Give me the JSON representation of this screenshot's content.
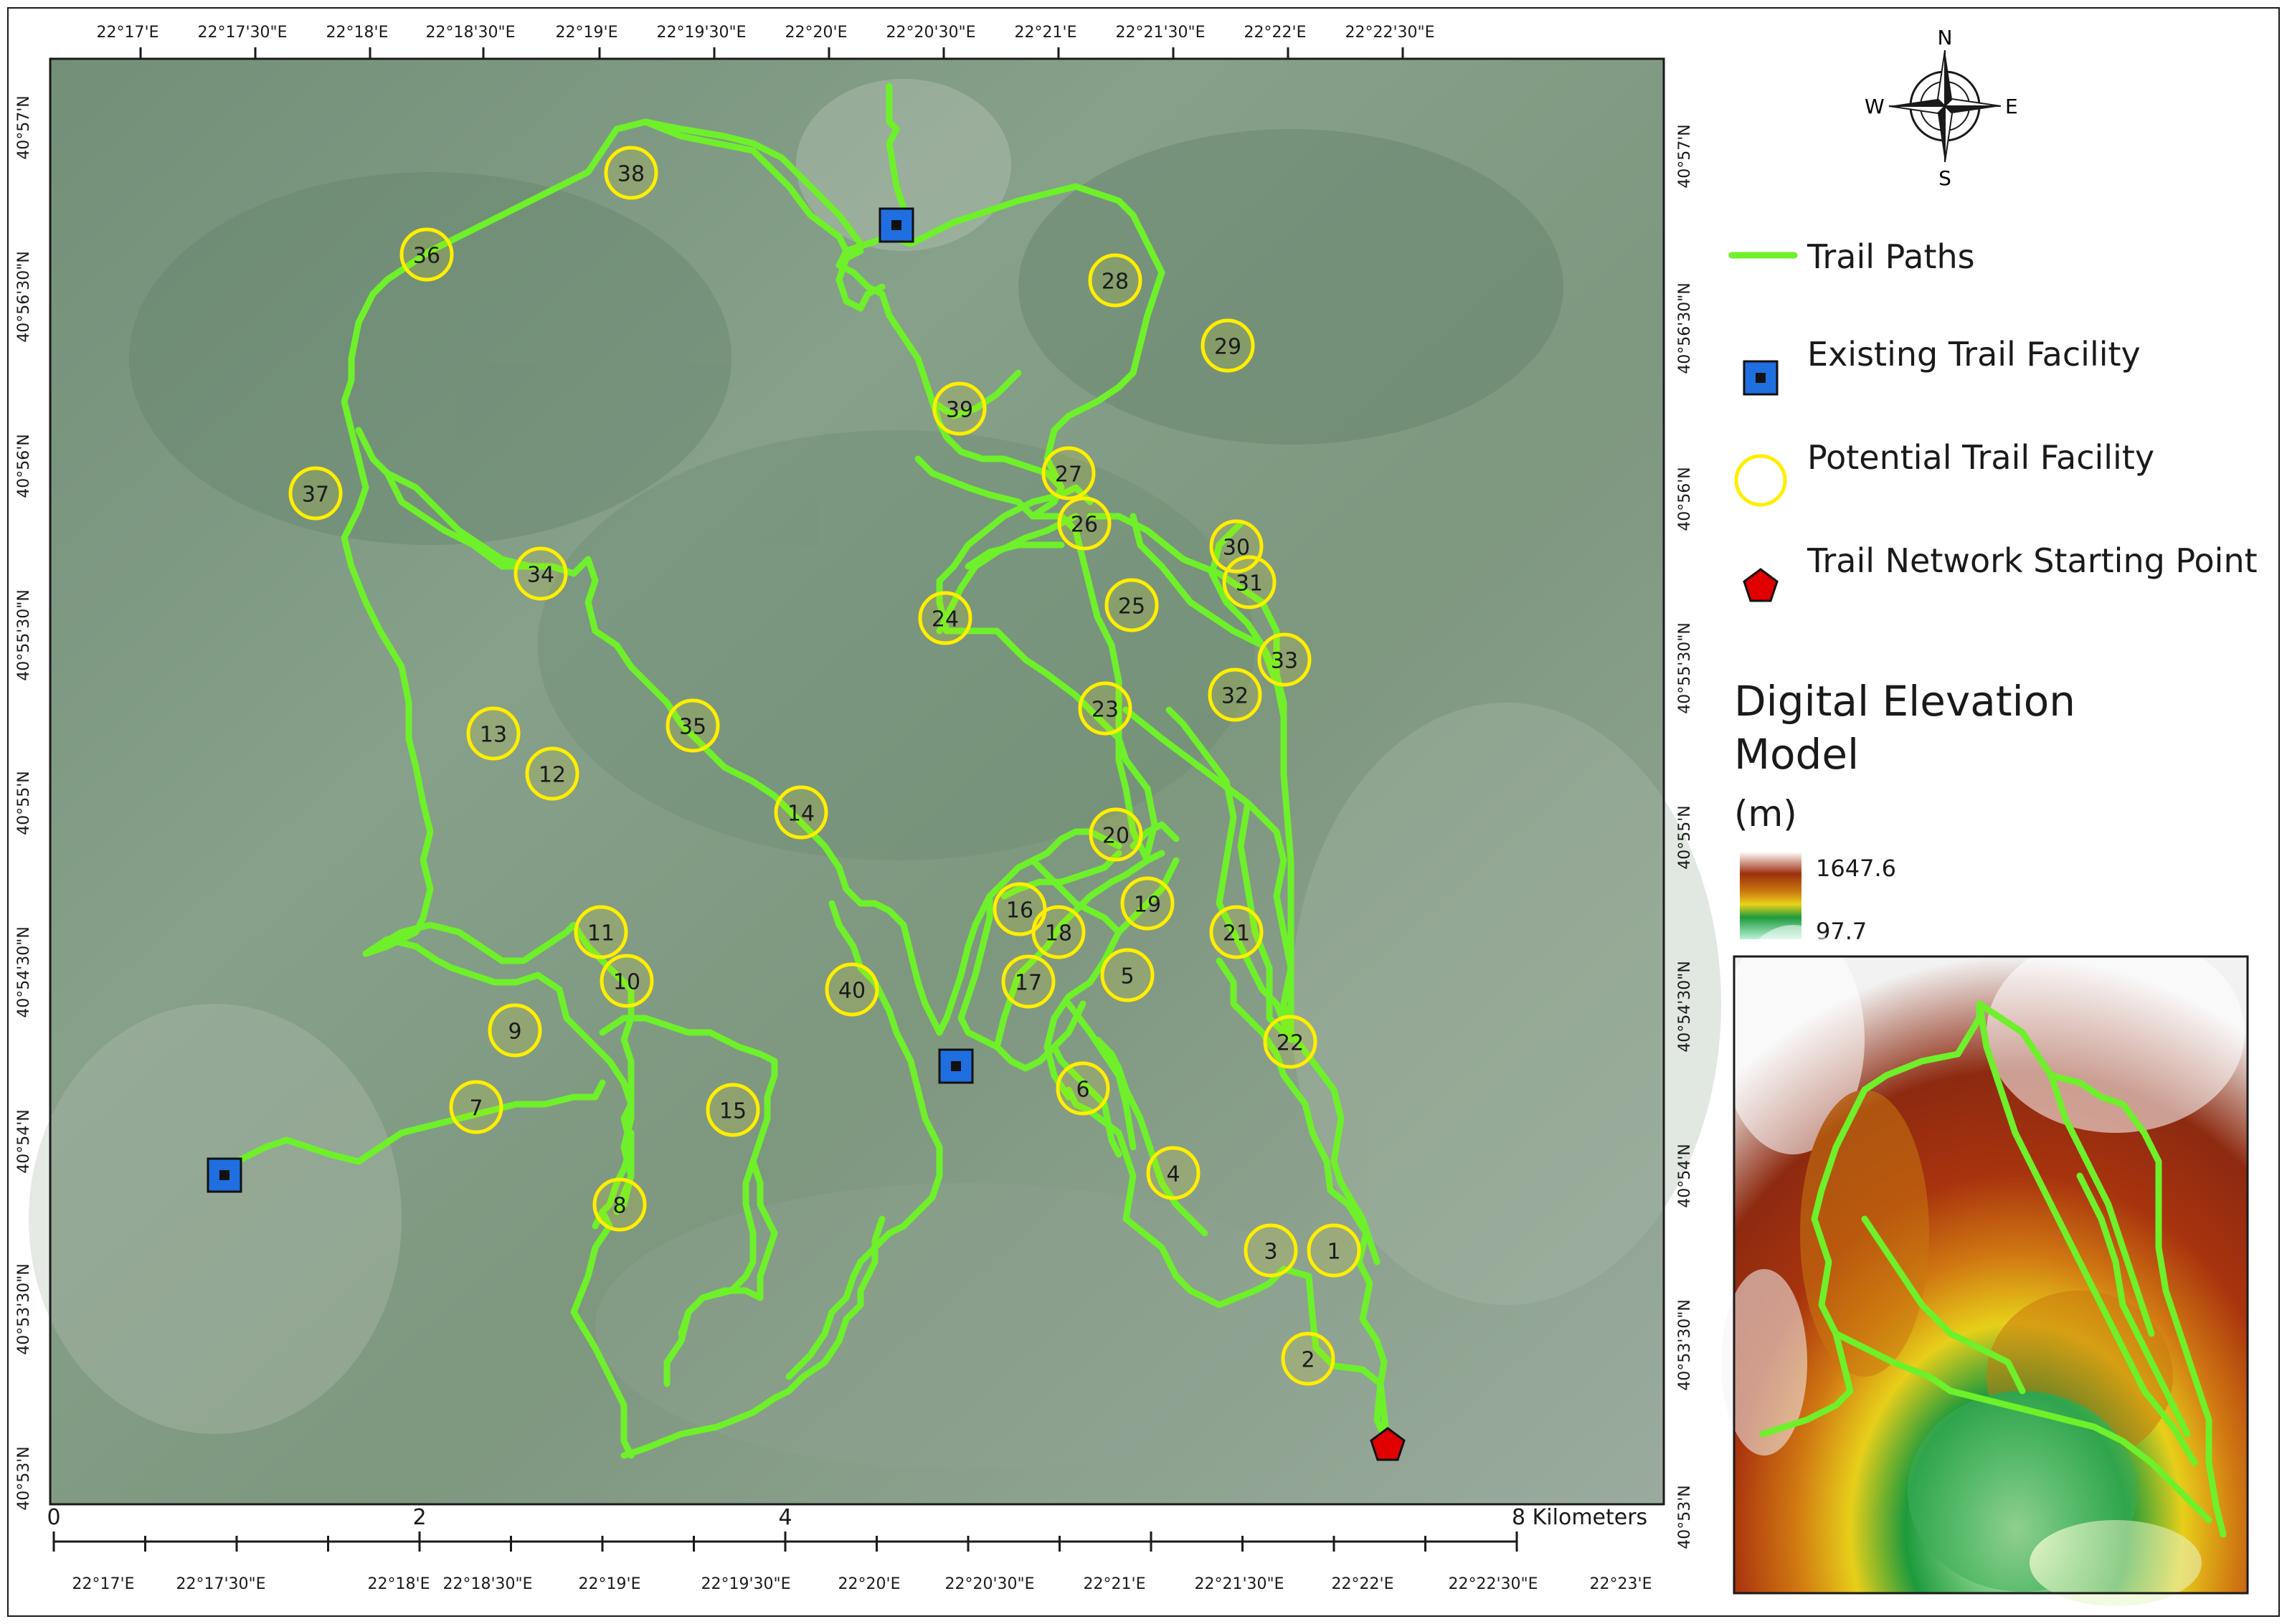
{
  "map": {
    "longitude_labels": [
      "22°17'E",
      "22°17'30\"E",
      "22°18'E",
      "22°18'30\"E",
      "22°19'E",
      "22°19'30\"E",
      "22°20'E",
      "22°20'30\"E",
      "22°21'E",
      "22°21'30\"E",
      "22°22'E",
      "22°22'30\"E"
    ],
    "bottom_longitude_labels": [
      "22°17'E",
      "22°17'30\"E",
      "22°18'E",
      "22°18'30\"E",
      "22°19'E",
      "22°19'30\"E",
      "22°20'E",
      "22°20'30\"E",
      "22°21'E",
      "22°21'30\"E",
      "22°22'E",
      "22°22'30\"E",
      "22°23'E"
    ],
    "left_latitude_labels": [
      "40°57'N",
      "40°56'30\"N",
      "40°56'N",
      "40°55'30\"N",
      "40°55'N",
      "40°54'30\"N",
      "40°54'N",
      "40°53'30\"N",
      "40°53'N"
    ],
    "right_latitude_labels": [
      "40°57'N",
      "40°56'30\"N",
      "40°56'N",
      "40°55'30\"N",
      "40°55'N",
      "40°54'30\"N",
      "40°54'N",
      "40°53'30\"N",
      "40°53'N"
    ],
    "potential_facilities": [
      "1",
      "2",
      "3",
      "4",
      "5",
      "6",
      "7",
      "8",
      "9",
      "10",
      "11",
      "12",
      "13",
      "14",
      "15",
      "16",
      "17",
      "18",
      "19",
      "20",
      "21",
      "22",
      "23",
      "24",
      "25",
      "26",
      "27",
      "28",
      "29",
      "30",
      "31",
      "32",
      "33",
      "34",
      "35",
      "36",
      "37",
      "38",
      "39",
      "40"
    ],
    "scale_bar": {
      "labels": [
        "0",
        "2",
        "4",
        "8 Kilometers"
      ]
    }
  },
  "compass": {
    "north": "N",
    "south": "S",
    "east": "E",
    "west": "W"
  },
  "legend": {
    "trail_paths": "Trail Paths",
    "existing_facility": "Existing Trail Facility",
    "potential_facility": "Potential Trail Facility",
    "starting_point": "Trail Network Starting Point",
    "dem_title_line1": "Digital Elevation",
    "dem_title_line2": "Model",
    "dem_unit": "(m)",
    "dem_max": "1647.6",
    "dem_min": "97.7"
  },
  "colors": {
    "trail": "#6ef02a",
    "existing_facility": "#1f6fe0",
    "potential_facility": "#ffee00",
    "starting_point": "#e00000",
    "imagery_base": "#7f9682"
  }
}
